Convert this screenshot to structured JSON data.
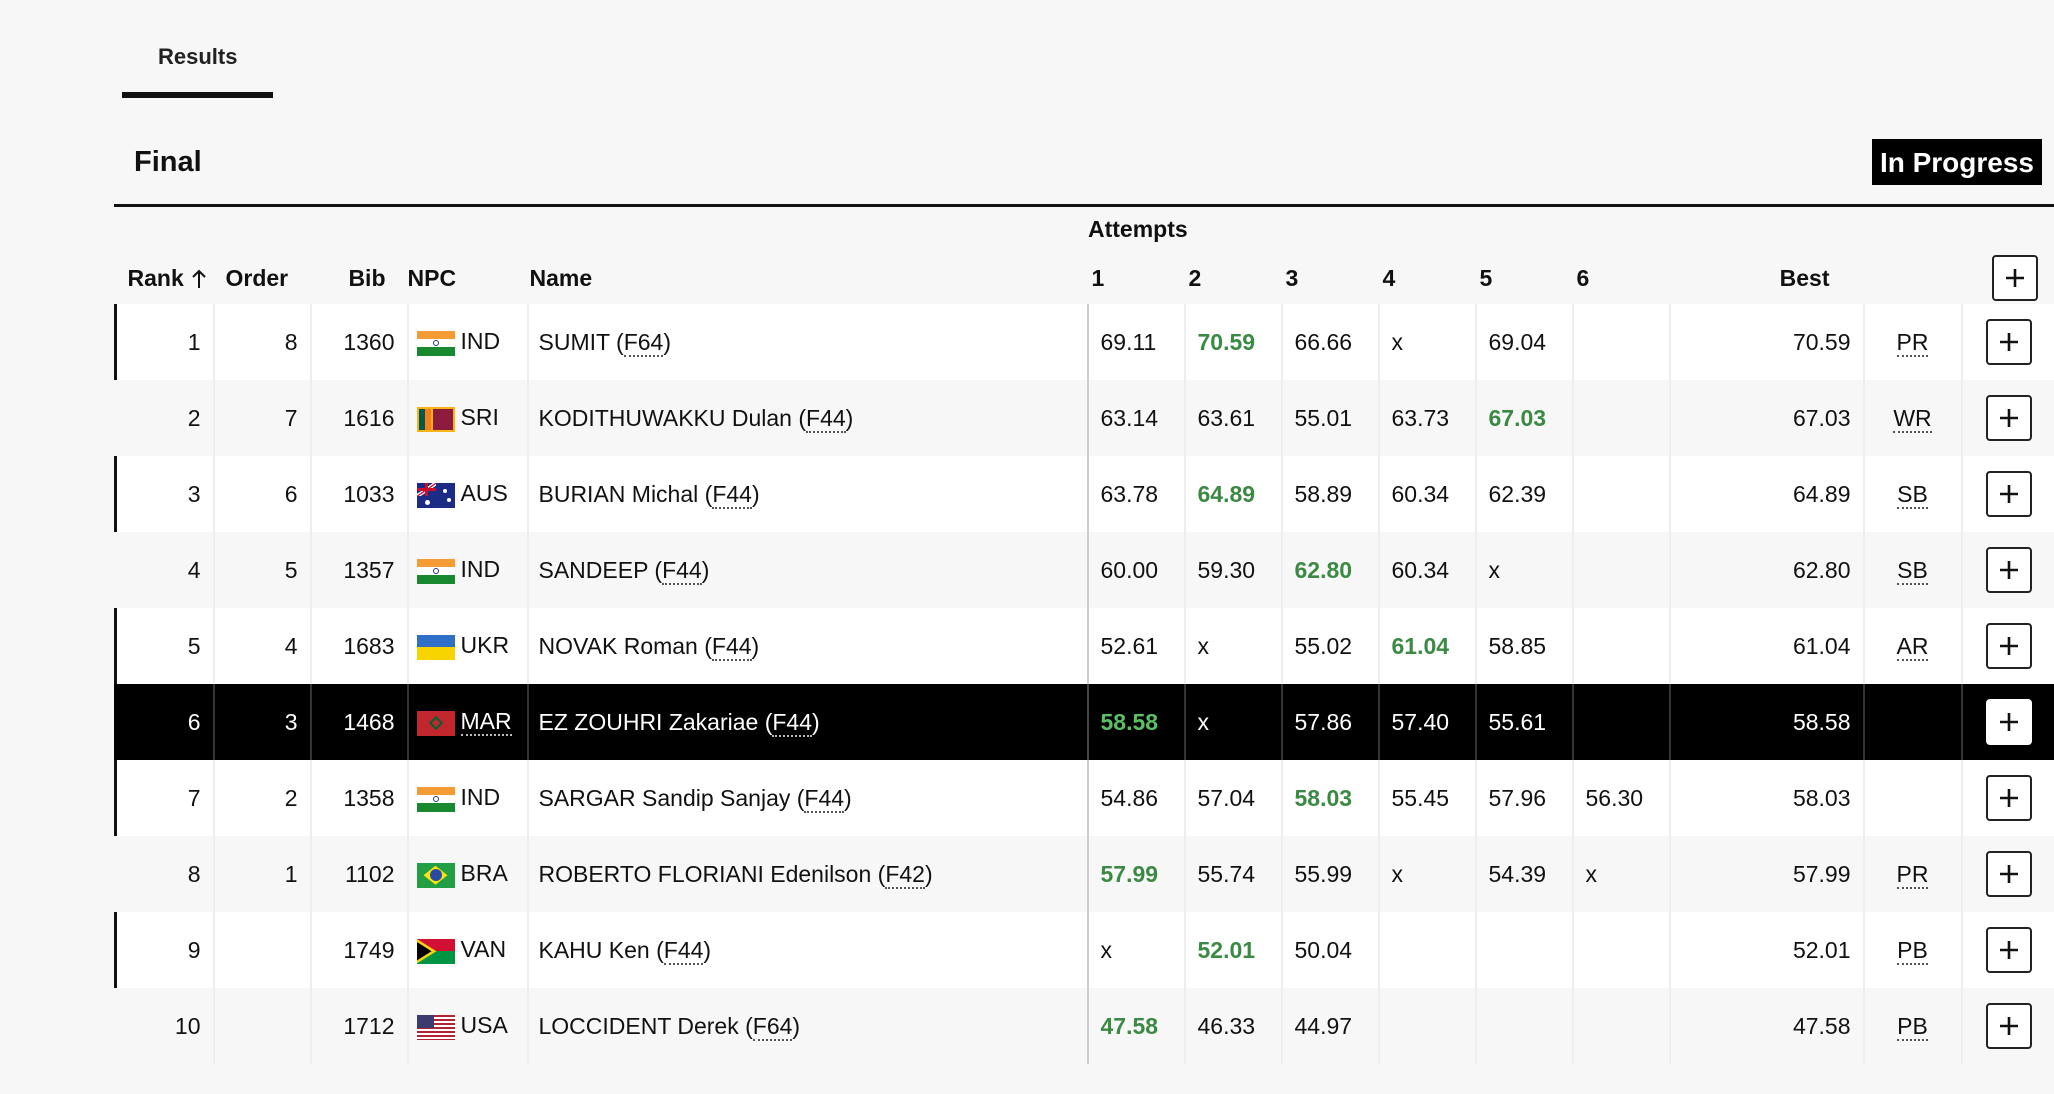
{
  "tabs": [
    {
      "label": "Results"
    }
  ],
  "round": {
    "title": "Final",
    "status": "In Progress"
  },
  "columns": {
    "rank": "Rank",
    "order": "Order",
    "bib": "Bib",
    "npc": "NPC",
    "name": "Name",
    "attempts_group": "Attempts",
    "attempts": [
      "1",
      "2",
      "3",
      "4",
      "5",
      "6"
    ],
    "best": "Best"
  },
  "sort_icon": "arrow-up-icon",
  "expand_icon": "plus-icon",
  "colors": {
    "best_mark": "#3b8a44",
    "selected_row": "#000000",
    "status_badge": "#000000"
  },
  "rows": [
    {
      "rank": "1",
      "order": "8",
      "bib": "1360",
      "npc": "IND",
      "name": "SUMIT (",
      "cls": "F64",
      "attempts": [
        "69.11",
        "70.59",
        "66.66",
        "x",
        "69.04",
        ""
      ],
      "best_idx": 1,
      "best": "70.59",
      "record": "PR"
    },
    {
      "rank": "2",
      "order": "7",
      "bib": "1616",
      "npc": "SRI",
      "name": "KODITHUWAKKU Dulan (",
      "cls": "F44",
      "attempts": [
        "63.14",
        "63.61",
        "55.01",
        "63.73",
        "67.03",
        ""
      ],
      "best_idx": 4,
      "best": "67.03",
      "record": "WR"
    },
    {
      "rank": "3",
      "order": "6",
      "bib": "1033",
      "npc": "AUS",
      "name": "BURIAN Michal (",
      "cls": "F44",
      "attempts": [
        "63.78",
        "64.89",
        "58.89",
        "60.34",
        "62.39",
        ""
      ],
      "best_idx": 1,
      "best": "64.89",
      "record": "SB"
    },
    {
      "rank": "4",
      "order": "5",
      "bib": "1357",
      "npc": "IND",
      "name": "SANDEEP (",
      "cls": "F44",
      "attempts": [
        "60.00",
        "59.30",
        "62.80",
        "60.34",
        "x",
        ""
      ],
      "best_idx": 2,
      "best": "62.80",
      "record": "SB"
    },
    {
      "rank": "5",
      "order": "4",
      "bib": "1683",
      "npc": "UKR",
      "name": "NOVAK Roman (",
      "cls": "F44",
      "attempts": [
        "52.61",
        "x",
        "55.02",
        "61.04",
        "58.85",
        ""
      ],
      "best_idx": 3,
      "best": "61.04",
      "record": "AR"
    },
    {
      "rank": "6",
      "order": "3",
      "bib": "1468",
      "npc": "MAR",
      "name": "EZ ZOUHRI Zakariae (",
      "cls": "F44",
      "attempts": [
        "58.58",
        "x",
        "57.86",
        "57.40",
        "55.61",
        ""
      ],
      "best_idx": 0,
      "best": "58.58",
      "record": "",
      "selected": true
    },
    {
      "rank": "7",
      "order": "2",
      "bib": "1358",
      "npc": "IND",
      "name": "SARGAR Sandip Sanjay (",
      "cls": "F44",
      "attempts": [
        "54.86",
        "57.04",
        "58.03",
        "55.45",
        "57.96",
        "56.30"
      ],
      "best_idx": 2,
      "best": "58.03",
      "record": ""
    },
    {
      "rank": "8",
      "order": "1",
      "bib": "1102",
      "npc": "BRA",
      "name": "ROBERTO FLORIANI Edenilson (",
      "cls": "F42",
      "attempts": [
        "57.99",
        "55.74",
        "55.99",
        "x",
        "54.39",
        "x"
      ],
      "best_idx": 0,
      "best": "57.99",
      "record": "PR"
    },
    {
      "rank": "9",
      "order": "",
      "bib": "1749",
      "npc": "VAN",
      "name": "KAHU Ken (",
      "cls": "F44",
      "attempts": [
        "x",
        "52.01",
        "50.04",
        "",
        "",
        ""
      ],
      "best_idx": 1,
      "best": "52.01",
      "record": "PB"
    },
    {
      "rank": "10",
      "order": "",
      "bib": "1712",
      "npc": "USA",
      "name": "LOCCIDENT Derek (",
      "cls": "F64",
      "attempts": [
        "47.58",
        "46.33",
        "44.97",
        "",
        "",
        ""
      ],
      "best_idx": 0,
      "best": "47.58",
      "record": "PB"
    }
  ]
}
